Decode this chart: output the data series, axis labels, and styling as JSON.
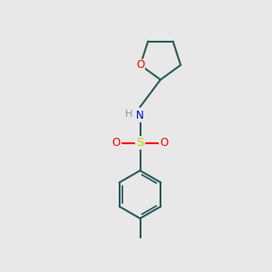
{
  "bg_color": "#e8e8e8",
  "bond_color": "#2d5a5a",
  "atom_colors": {
    "O": "#ff0000",
    "N": "#0000cc",
    "S": "#cccc00",
    "H": "#7a9a9a",
    "C": "#2d5a5a"
  },
  "line_width": 1.5,
  "figsize": [
    3.0,
    3.0
  ],
  "dpi": 100
}
